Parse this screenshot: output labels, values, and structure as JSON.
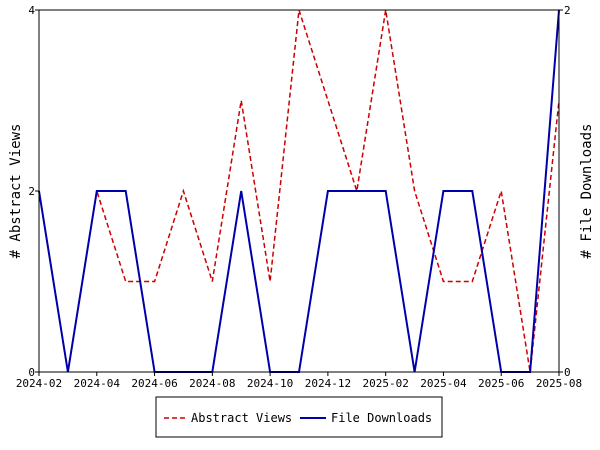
{
  "chart_data": {
    "type": "line",
    "x": [
      "2024-02",
      "2024-03",
      "2024-04",
      "2024-05",
      "2024-06",
      "2024-07",
      "2024-08",
      "2024-09",
      "2024-10",
      "2024-11",
      "2024-12",
      "2025-01",
      "2025-02",
      "2025-03",
      "2025-04",
      "2025-05",
      "2025-06",
      "2025-07",
      "2025-08"
    ],
    "x_ticks": [
      "2024-02",
      "2024-04",
      "2024-06",
      "2024-08",
      "2024-10",
      "2024-12",
      "2025-02",
      "2025-04",
      "2025-06",
      "2025-08"
    ],
    "series": [
      {
        "name": "Abstract Views",
        "axis": "left",
        "color": "#cc0000",
        "dash": "dashed",
        "values": [
          2,
          0,
          2,
          1,
          1,
          2,
          1,
          3,
          1,
          4,
          3,
          2,
          4,
          2,
          1,
          1,
          2,
          0,
          3
        ]
      },
      {
        "name": "File Downloads",
        "axis": "right",
        "color": "#0000aa",
        "dash": "solid",
        "values": [
          1,
          0,
          1,
          1,
          0,
          0,
          0,
          1,
          0,
          0,
          1,
          1,
          1,
          0,
          1,
          1,
          0,
          0,
          2
        ]
      }
    ],
    "ylabel_left": "# Abstract Views",
    "ylabel_right": "# File Downloads",
    "ylim_left": [
      0,
      4
    ],
    "ylim_right": [
      0,
      2
    ],
    "yticks_left": [
      0,
      2,
      4
    ],
    "yticks_right": [
      0,
      2
    ],
    "grid": false,
    "legend_position": "bottom-center"
  }
}
